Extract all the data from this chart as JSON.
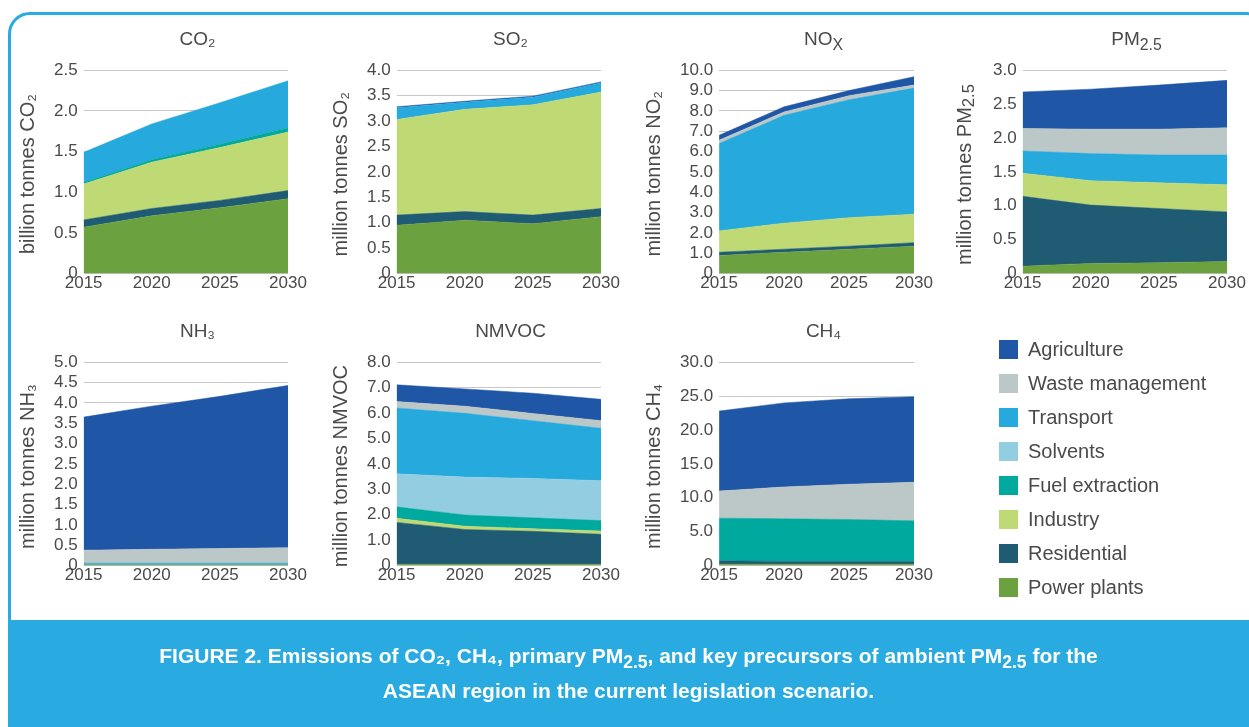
{
  "chart_data": [
    {
      "type": "area",
      "title": "CO₂",
      "ylabel": "billion tonnes CO₂",
      "stacked": true,
      "grid": "y",
      "x": [
        2015,
        2020,
        2025,
        2030
      ],
      "xlim": [
        2015,
        2030
      ],
      "xticks": [
        2015,
        2020,
        2025,
        2030
      ],
      "ylim": [
        0,
        2.5
      ],
      "yticks": [
        0,
        0.5,
        {
          "value": 1,
          "label": "1.0"
        },
        1.5,
        {
          "value": 2,
          "label": "2.0"
        },
        2.5
      ],
      "series": [
        {
          "color": "#6ca13f",
          "values": [
            0.57,
            0.71,
            0.81,
            0.92
          ]
        },
        {
          "color": "#1f5c73",
          "values": [
            0.09,
            0.09,
            0.09,
            0.1
          ]
        },
        {
          "color": "#bfd975",
          "values": [
            0.44,
            0.57,
            0.65,
            0.72
          ]
        },
        {
          "color": "#00a99d",
          "values": [
            0.02,
            0.03,
            0.04,
            0.05
          ]
        },
        {
          "color": "#26a9dc",
          "values": [
            0.37,
            0.44,
            0.51,
            0.58
          ]
        }
      ]
    },
    {
      "type": "area",
      "title": "SO₂",
      "ylabel": "million tonnes SO₂",
      "stacked": true,
      "grid": "y",
      "x": [
        2015,
        2020,
        2025,
        2030
      ],
      "xlim": [
        2015,
        2030
      ],
      "xticks": [
        2015,
        2020,
        2025,
        2030
      ],
      "ylim": [
        0,
        4
      ],
      "yticks": [
        0,
        0.5,
        {
          "value": 1,
          "label": "1.0"
        },
        1.5,
        {
          "value": 2,
          "label": "2.0"
        },
        2.5,
        {
          "value": 3,
          "label": "3.0"
        },
        3.5,
        {
          "value": 4,
          "label": "4.0"
        }
      ],
      "series": [
        {
          "color": "#6ca13f",
          "values": [
            0.95,
            1.05,
            0.98,
            1.12
          ]
        },
        {
          "color": "#1f5c73",
          "values": [
            0.2,
            0.17,
            0.17,
            0.16
          ]
        },
        {
          "color": "#bfd975",
          "values": [
            1.88,
            2.01,
            2.17,
            2.29
          ]
        },
        {
          "color": "#26a9dc",
          "values": [
            0.23,
            0.14,
            0.15,
            0.18
          ]
        },
        {
          "color": "#1f56a6",
          "values": [
            0.02,
            0.02,
            0.02,
            0.02
          ]
        }
      ]
    },
    {
      "type": "area",
      "title": "NO$_{X}$",
      "ylabel": "million tonnes NO₂",
      "stacked": true,
      "grid": "y",
      "x": [
        2015,
        2020,
        2025,
        2030
      ],
      "xlim": [
        2015,
        2030
      ],
      "xticks": [
        2015,
        2020,
        2025,
        2030
      ],
      "ylim": [
        0,
        10
      ],
      "yticks": [
        0,
        {
          "value": 1,
          "label": "1.0"
        },
        {
          "value": 2,
          "label": "2.0"
        },
        {
          "value": 3,
          "label": "3.0"
        },
        {
          "value": 4,
          "label": "4.0"
        },
        {
          "value": 5,
          "label": "5.0"
        },
        {
          "value": 6,
          "label": "6.0"
        },
        {
          "value": 7,
          "label": "7.0"
        },
        {
          "value": 8,
          "label": "8.0"
        },
        {
          "value": 9,
          "label": "9.0"
        },
        {
          "value": 10,
          "label": "10.0"
        }
      ],
      "series": [
        {
          "color": "#6ca13f",
          "values": [
            0.89,
            1.05,
            1.2,
            1.35
          ]
        },
        {
          "color": "#1f5c73",
          "values": [
            0.16,
            0.15,
            0.15,
            0.17
          ]
        },
        {
          "color": "#bfd975",
          "values": [
            1.05,
            1.28,
            1.4,
            1.4
          ]
        },
        {
          "color": "#26a9dc",
          "values": [
            4.3,
            5.3,
            5.8,
            6.2
          ]
        },
        {
          "color": "#bcc7c7",
          "values": [
            0.16,
            0.17,
            0.2,
            0.15
          ]
        },
        {
          "color": "#1f56a6",
          "values": [
            0.24,
            0.25,
            0.25,
            0.41
          ]
        }
      ]
    },
    {
      "type": "area",
      "title": "PM$_{2.5}$",
      "ylabel": "million tonnes PM$_{2.5}$",
      "stacked": true,
      "grid": "y",
      "x": [
        2015,
        2020,
        2025,
        2030
      ],
      "xlim": [
        2015,
        2030
      ],
      "xticks": [
        2015,
        2020,
        2025,
        2030
      ],
      "ylim": [
        0,
        3
      ],
      "yticks": [
        0,
        0.5,
        {
          "value": 1,
          "label": "1.0"
        },
        1.5,
        {
          "value": 2,
          "label": "2.0"
        },
        2.5,
        {
          "value": 3,
          "label": "3.0"
        }
      ],
      "series": [
        {
          "color": "#6ca13f",
          "values": [
            0.11,
            0.15,
            0.16,
            0.18
          ]
        },
        {
          "color": "#1f5c73",
          "values": [
            1.03,
            0.86,
            0.8,
            0.73
          ]
        },
        {
          "color": "#bfd975",
          "values": [
            0.34,
            0.36,
            0.38,
            0.4
          ]
        },
        {
          "color": "#26a9dc",
          "values": [
            0.33,
            0.4,
            0.41,
            0.44
          ]
        },
        {
          "color": "#bcc7c7",
          "values": [
            0.33,
            0.36,
            0.38,
            0.4
          ]
        },
        {
          "color": "#1f56a6",
          "values": [
            0.54,
            0.59,
            0.65,
            0.7
          ]
        }
      ]
    },
    {
      "type": "area",
      "title": "NH₃",
      "ylabel": "million tonnes NH₃",
      "stacked": true,
      "grid": "y",
      "x": [
        2015,
        2020,
        2025,
        2030
      ],
      "xlim": [
        2015,
        2030
      ],
      "xticks": [
        2015,
        2020,
        2025,
        2030
      ],
      "ylim": [
        0,
        5
      ],
      "yticks": [
        0,
        0.5,
        {
          "value": 1,
          "label": "1.0"
        },
        1.5,
        {
          "value": 2,
          "label": "2.0"
        },
        2.5,
        {
          "value": 3,
          "label": "3.0"
        },
        3.5,
        {
          "value": 4,
          "label": "4.0"
        },
        4.5,
        {
          "value": 5,
          "label": "5.0"
        }
      ],
      "series": [
        {
          "color": "#6ca13f",
          "values": [
            0.02,
            0.02,
            0.02,
            0.02
          ]
        },
        {
          "color": "#26a9dc",
          "values": [
            0.04,
            0.04,
            0.04,
            0.04
          ]
        },
        {
          "color": "#bcc7c7",
          "values": [
            0.32,
            0.34,
            0.36,
            0.38
          ]
        },
        {
          "color": "#1f56a6",
          "values": [
            3.27,
            3.52,
            3.74,
            3.99
          ]
        }
      ]
    },
    {
      "type": "area",
      "title": "NMVOC",
      "ylabel": "million tonnes NMVOC",
      "stacked": true,
      "grid": "y",
      "legend": "right",
      "x": [
        2015,
        2020,
        2025,
        2030
      ],
      "xlim": [
        2015,
        2030
      ],
      "xticks": [
        2015,
        2020,
        2025,
        2030
      ],
      "ylim": [
        0,
        8
      ],
      "yticks": [
        0,
        {
          "value": 1,
          "label": "1.0"
        },
        {
          "value": 2,
          "label": "2.0"
        },
        {
          "value": 3,
          "label": "3.0"
        },
        {
          "value": 4,
          "label": "4.0"
        },
        {
          "value": 5,
          "label": "5.0"
        },
        {
          "value": 6,
          "label": "6.0"
        },
        {
          "value": 7,
          "label": "7.0"
        },
        {
          "value": 8,
          "label": "8.0"
        }
      ],
      "series": [
        {
          "name": "Power plants",
          "color": "#6ca13f",
          "values": [
            0.05,
            0.05,
            0.05,
            0.05
          ]
        },
        {
          "name": "Residential",
          "color": "#1f5c73",
          "values": [
            1.65,
            1.37,
            1.3,
            1.18
          ]
        },
        {
          "name": "Industry",
          "color": "#bfd975",
          "values": [
            0.16,
            0.13,
            0.1,
            0.13
          ]
        },
        {
          "name": "Fuel extraction",
          "color": "#00a99d",
          "values": [
            0.45,
            0.44,
            0.43,
            0.41
          ]
        },
        {
          "name": "Solvents",
          "color": "#93cde1",
          "values": [
            1.3,
            1.49,
            1.55,
            1.57
          ]
        },
        {
          "name": "Transport",
          "color": "#26a9dc",
          "values": [
            2.59,
            2.51,
            2.27,
            2.06
          ]
        },
        {
          "name": "Waste management",
          "color": "#bcc7c7",
          "values": [
            0.25,
            0.28,
            0.28,
            0.3
          ]
        },
        {
          "name": "Agriculture",
          "color": "#1f56a6",
          "values": [
            0.66,
            0.68,
            0.8,
            0.84
          ]
        }
      ]
    },
    {
      "type": "area",
      "title": "CH₄",
      "ylabel": "million tonnes CH₄",
      "stacked": true,
      "grid": "y",
      "x": [
        2015,
        2020,
        2025,
        2030
      ],
      "xlim": [
        2015,
        2030
      ],
      "xticks": [
        2015,
        2020,
        2025,
        2030
      ],
      "ylim": [
        0,
        30
      ],
      "yticks": [
        0,
        {
          "value": 5,
          "label": "5.0"
        },
        {
          "value": 10,
          "label": "10.0"
        },
        {
          "value": 15,
          "label": "15.0"
        },
        {
          "value": 20,
          "label": "20.0"
        },
        {
          "value": 25,
          "label": "25.0"
        },
        {
          "value": 30,
          "label": "30.0"
        }
      ],
      "annotations": [
        "FIGURE 2. Emissions of CO₂, CH₄, primary PM$_{2.5}$, and key precursors of ambient PM$_{2.5}$ for the ASEAN region in the current legislation scenario."
      ],
      "series": [
        {
          "color": "#6ca13f",
          "values": [
            0.2,
            0.2,
            0.2,
            0.2
          ]
        },
        {
          "color": "#1f5c73",
          "values": [
            0.5,
            0.4,
            0.4,
            0.4
          ]
        },
        {
          "color": "#00a99d",
          "values": [
            6.3,
            6.3,
            6.2,
            6.0
          ]
        },
        {
          "color": "#bcc7c7",
          "values": [
            4.0,
            4.7,
            5.2,
            5.7
          ]
        },
        {
          "color": "#1f56a6",
          "values": [
            11.8,
            12.4,
            12.6,
            12.6
          ]
        }
      ]
    }
  ]
}
